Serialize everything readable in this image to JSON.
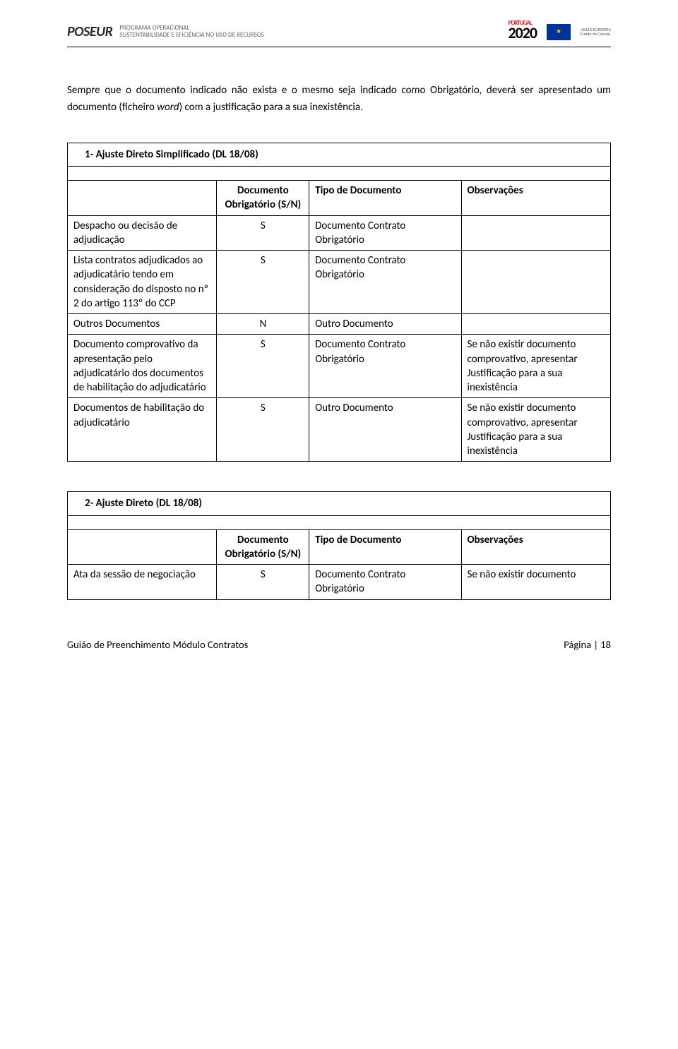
{
  "header": {
    "poseur": "POSEUR",
    "strapline1": "PROGRAMA OPERACIONAL",
    "strapline2": "SUSTENTABILIDADE E EFICIÊNCIA NO USO DE RECURSOS",
    "pt2020_small": "PORTUGAL",
    "pt2020_big": "2020",
    "eu1": "UNIÃO EUROPEIA",
    "eu2": "Fundo de Coesão"
  },
  "intro": {
    "p1a": "Sempre que o documento indicado não exista e o mesmo seja indicado como Obrigatório, deverá ser apresentado um documento (ficheiro ",
    "p1i": "word",
    "p1b": ") com a justificação para a sua inexistência."
  },
  "tables": {
    "t1": {
      "title": "1-   Ajuste Direto Simplificado (DL 18/08)",
      "head": {
        "c1": "",
        "c2": "Documento Obrigatório (S/N)",
        "c3": "Tipo de Documento",
        "c4": "Observações"
      },
      "rows": [
        {
          "c1": "Despacho ou decisão de adjudicação",
          "c2": "S",
          "c3": "Documento Contrato Obrigatório",
          "c4": ""
        },
        {
          "c1": "Lista contratos adjudicados ao adjudicatário tendo em consideração do disposto no nº 2 do artigo 113º do CCP",
          "c2": "S",
          "c3": "Documento Contrato Obrigatório",
          "c4": ""
        },
        {
          "c1": "Outros Documentos",
          "c2": "N",
          "c3": "Outro Documento",
          "c4": ""
        },
        {
          "c1": "Documento comprovativo da apresentação pelo adjudicatário dos documentos de habilitação do adjudicatário",
          "c2": "S",
          "c3": "Documento Contrato Obrigatório",
          "c4": "Se não existir documento comprovativo, apresentar Justificação para a sua inexistência"
        },
        {
          "c1": "Documentos de habilitação do adjudicatário",
          "c2": "S",
          "c3": "Outro Documento",
          "c4": "Se não existir documento comprovativo, apresentar Justificação para a sua inexistência"
        }
      ]
    },
    "t2": {
      "title": "2-   Ajuste Direto (DL 18/08)",
      "head": {
        "c1": "",
        "c2": "Documento Obrigatório (S/N)",
        "c3": "Tipo de Documento",
        "c4": "Observações"
      },
      "rows": [
        {
          "c1": "Ata da sessão de negociação",
          "c2": "S",
          "c3": "Documento Contrato Obrigatório",
          "c4": "Se não existir documento"
        }
      ]
    }
  },
  "footer": {
    "left": "Guião de Preenchimento Módulo Contratos",
    "right": "Página | 18"
  }
}
